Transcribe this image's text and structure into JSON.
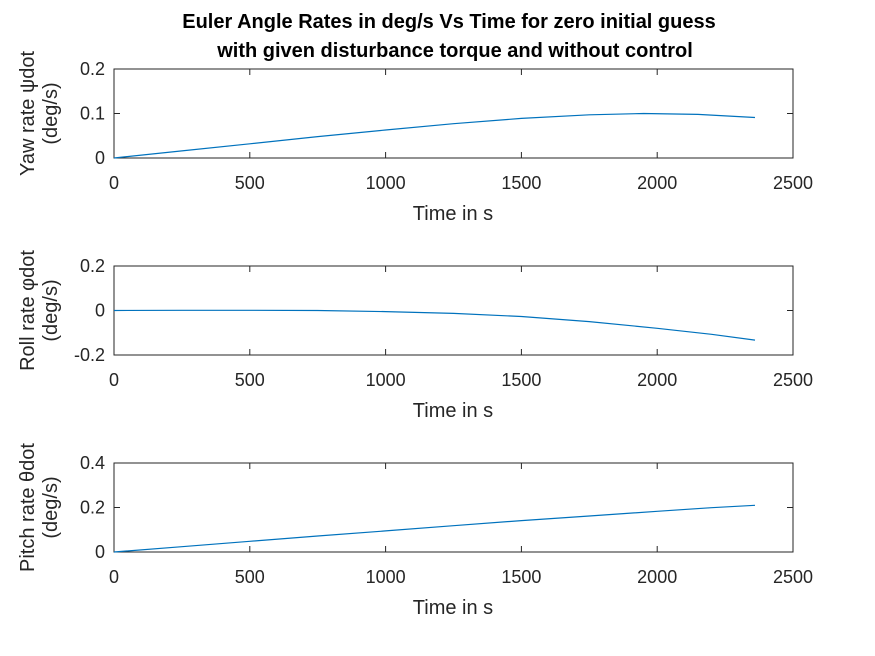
{
  "chart_data": [
    {
      "type": "line",
      "title_lines": [
        "Euler Angle Rates in deg/s Vs Time for zero initial guess",
        "with given disturbance torque and without control"
      ],
      "xlabel": "Time in s",
      "ylabel_lines": [
        "Yaw rate ψdot",
        "(deg/s)"
      ],
      "xlim": [
        0,
        2500
      ],
      "ylim": [
        0,
        0.2
      ],
      "xticks": [
        "0",
        "500",
        "1000",
        "1500",
        "2000",
        "2500"
      ],
      "yticks": [
        "0",
        "0.1",
        "0.2"
      ],
      "color": "#0072BD",
      "x": [
        0,
        250,
        500,
        750,
        1000,
        1250,
        1500,
        1750,
        1950,
        2150,
        2360
      ],
      "y": [
        0,
        0.016,
        0.032,
        0.048,
        0.063,
        0.077,
        0.089,
        0.097,
        0.1,
        0.098,
        0.091
      ]
    },
    {
      "type": "line",
      "xlabel": "Time in s",
      "ylabel_lines": [
        "Roll rate φdot",
        "(deg/s)"
      ],
      "xlim": [
        0,
        2500
      ],
      "ylim": [
        -0.2,
        0.2
      ],
      "xticks": [
        "0",
        "500",
        "1000",
        "1500",
        "2000",
        "2500"
      ],
      "yticks": [
        "-0.2",
        "0",
        "0.2"
      ],
      "color": "#0072BD",
      "x": [
        0,
        250,
        500,
        750,
        1000,
        1250,
        1500,
        1750,
        2000,
        2200,
        2360
      ],
      "y": [
        0,
        0.001,
        0.001,
        0,
        -0.005,
        -0.013,
        -0.027,
        -0.05,
        -0.08,
        -0.107,
        -0.133
      ]
    },
    {
      "type": "line",
      "xlabel": "Time in s",
      "ylabel_lines": [
        "Pitch rate θdot",
        "(deg/s)"
      ],
      "xlim": [
        0,
        2500
      ],
      "ylim": [
        0,
        0.4
      ],
      "xticks": [
        "0",
        "500",
        "1000",
        "1500",
        "2000",
        "2500"
      ],
      "yticks": [
        "0",
        "0.2",
        "0.4"
      ],
      "color": "#0072BD",
      "x": [
        0,
        250,
        500,
        750,
        1000,
        1250,
        1500,
        1750,
        2000,
        2200,
        2360
      ],
      "y": [
        0,
        0.024,
        0.048,
        0.072,
        0.095,
        0.118,
        0.141,
        0.162,
        0.183,
        0.199,
        0.21
      ]
    }
  ]
}
